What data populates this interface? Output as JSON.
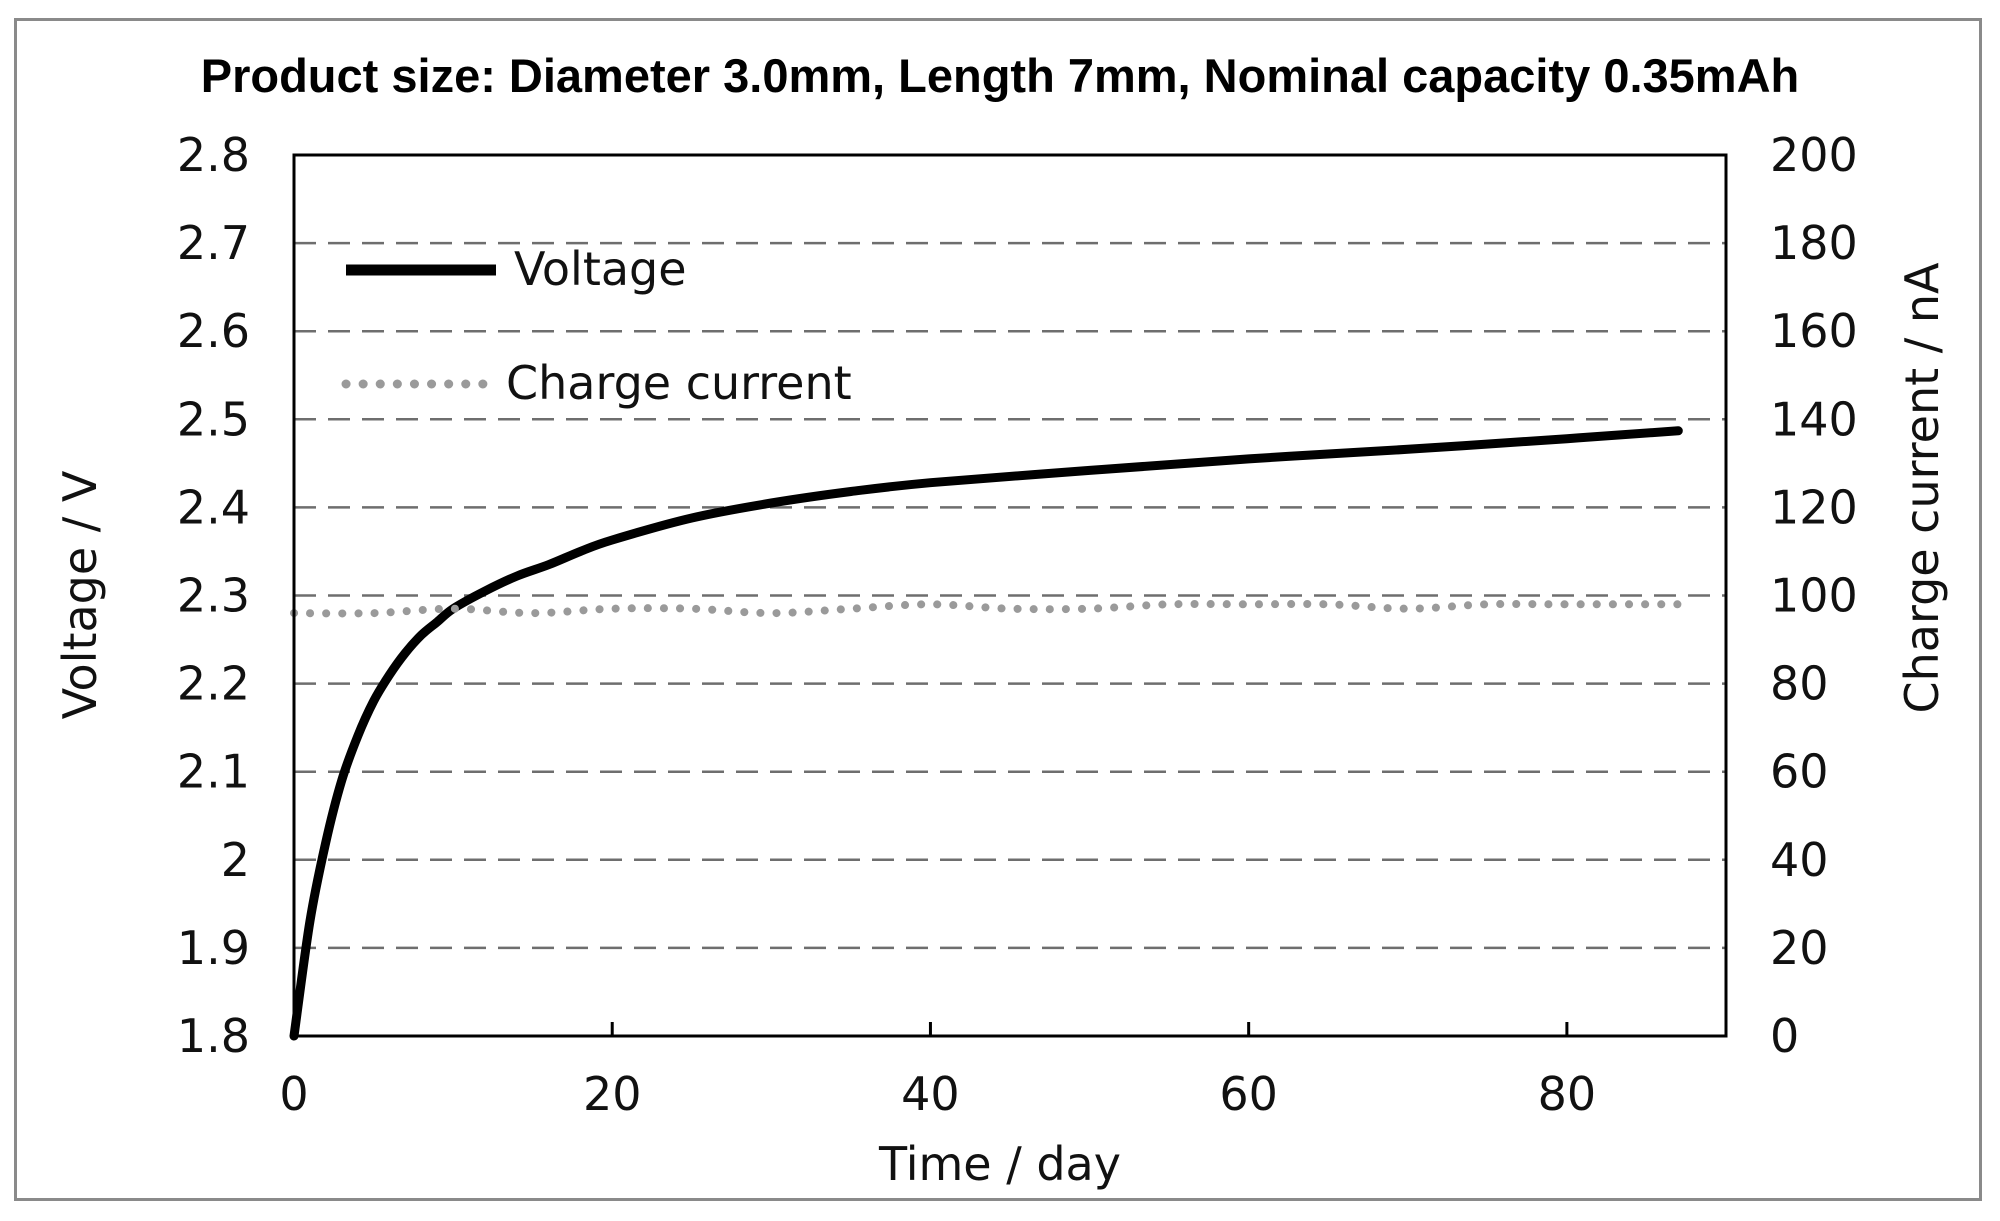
{
  "chart_data": {
    "type": "line",
    "title": "Product size: Diameter 3.0mm, Length 7mm, Nominal capacity 0.35mAh",
    "xlabel": "Time / day",
    "ylabel_left": "Voltage / V",
    "ylabel_right": "Charge current / nA",
    "xlim": [
      0,
      90
    ],
    "ylim_left": [
      1.8,
      2.8
    ],
    "ylim_right": [
      0,
      200
    ],
    "x_ticks": [
      "0",
      "20",
      "40",
      "60",
      "80"
    ],
    "y_left_ticks": [
      "1.8",
      "1.9",
      "2",
      "2.1",
      "2.2",
      "2.3",
      "2.4",
      "2.5",
      "2.6",
      "2.7",
      "2.8"
    ],
    "y_right_ticks": [
      "0",
      "20",
      "40",
      "60",
      "80",
      "100",
      "120",
      "140",
      "160",
      "180",
      "200"
    ],
    "grid": "horizontal dashed",
    "legend_position": "top-left",
    "series": [
      {
        "name": "Voltage",
        "axis": "left",
        "style": "solid",
        "color": "#000000",
        "x": [
          0,
          1,
          2,
          3,
          4,
          5,
          6,
          7,
          8,
          9,
          10,
          12,
          14,
          16,
          18,
          20,
          25,
          30,
          35,
          40,
          50,
          60,
          70,
          80,
          87
        ],
        "values": [
          1.8,
          1.93,
          2.02,
          2.09,
          2.14,
          2.18,
          2.21,
          2.235,
          2.255,
          2.27,
          2.285,
          2.305,
          2.322,
          2.335,
          2.35,
          2.363,
          2.388,
          2.405,
          2.418,
          2.428,
          2.442,
          2.455,
          2.466,
          2.478,
          2.487
        ]
      },
      {
        "name": "Charge current",
        "axis": "right",
        "style": "dotted",
        "color": "#9a9a9a",
        "x": [
          0,
          5,
          10,
          15,
          20,
          25,
          30,
          35,
          40,
          45,
          50,
          55,
          60,
          65,
          70,
          75,
          80,
          87
        ],
        "values": [
          96,
          96,
          97,
          96,
          97,
          97,
          96,
          97,
          98,
          97,
          97,
          98,
          98,
          98,
          97,
          98,
          98,
          98
        ]
      }
    ]
  }
}
